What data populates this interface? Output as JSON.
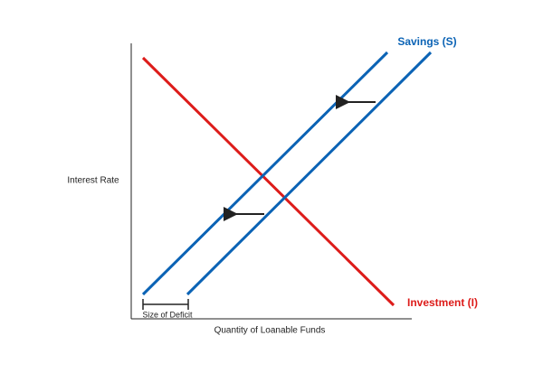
{
  "labels": {
    "savings": "Savings (S)",
    "investment": "Investment (I)",
    "y_axis": "Interest Rate",
    "x_axis": "Quantity of Loanable Funds",
    "deficit": "Size of Deficit"
  }
}
